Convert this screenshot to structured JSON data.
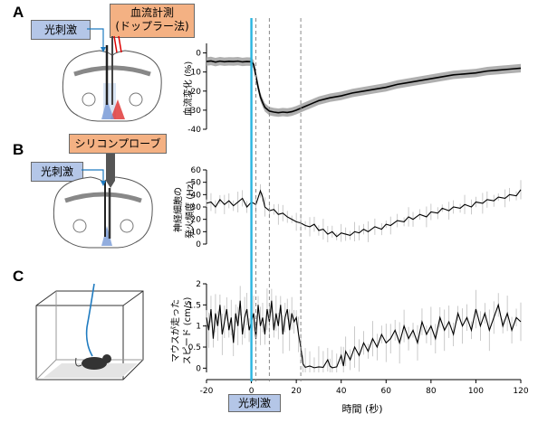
{
  "panels": {
    "A": {
      "letter": "A",
      "stim_label": "光刺激",
      "measure_label_1": "血流計測",
      "measure_label_2": "(ドップラー法)"
    },
    "B": {
      "letter": "B",
      "stim_label": "光刺激",
      "probe_label": "シリコンプローブ"
    },
    "C": {
      "letter": "C"
    }
  },
  "stim_bottom_label": "光刺激",
  "colors": {
    "stim_line": "#29b5e0",
    "stim_tag": "#b4c6e7",
    "measure_tag": "#f4b183",
    "band": "#a6a6a6",
    "trace": "#000000",
    "error": "#bdbdbd"
  },
  "chart_data": [
    {
      "type": "line",
      "panel": "A",
      "ylabel": "血流変化 (%)",
      "xlim": [
        -20,
        120
      ],
      "ylim": [
        -40,
        5
      ],
      "yticks": [
        0,
        -10,
        -20,
        -30,
        -40
      ],
      "series": [
        {
          "values": [
            [
              -20,
              -4.5
            ],
            [
              -18,
              -4.2
            ],
            [
              -16,
              -4.8
            ],
            [
              -14,
              -4.3
            ],
            [
              -12,
              -4.6
            ],
            [
              -10,
              -4.4
            ],
            [
              -8,
              -4.5
            ],
            [
              -6,
              -4.3
            ],
            [
              -4,
              -4.7
            ],
            [
              -2,
              -4.5
            ],
            [
              0,
              -4.6
            ],
            [
              1,
              -6
            ],
            [
              2,
              -12
            ],
            [
              3,
              -18
            ],
            [
              4,
              -23
            ],
            [
              5,
              -26
            ],
            [
              6,
              -28.5
            ],
            [
              7,
              -29.5
            ],
            [
              8,
              -30.5
            ],
            [
              10,
              -31
            ],
            [
              12,
              -31.3
            ],
            [
              14,
              -31
            ],
            [
              16,
              -31.2
            ],
            [
              18,
              -30.8
            ],
            [
              20,
              -30
            ],
            [
              22,
              -29
            ],
            [
              24,
              -28
            ],
            [
              26,
              -27
            ],
            [
              28,
              -26
            ],
            [
              30,
              -25
            ],
            [
              35,
              -23.5
            ],
            [
              40,
              -22.5
            ],
            [
              45,
              -21
            ],
            [
              50,
              -20
            ],
            [
              55,
              -19
            ],
            [
              60,
              -18
            ],
            [
              65,
              -16.5
            ],
            [
              70,
              -15.5
            ],
            [
              75,
              -14.5
            ],
            [
              80,
              -13.5
            ],
            [
              85,
              -12.5
            ],
            [
              90,
              -11.5
            ],
            [
              95,
              -11
            ],
            [
              100,
              -10.5
            ],
            [
              105,
              -9.5
            ],
            [
              110,
              -9
            ],
            [
              115,
              -8.5
            ],
            [
              120,
              -8
            ]
          ]
        }
      ]
    },
    {
      "type": "line",
      "panel": "B",
      "ylabel_1": "神経細胞の",
      "ylabel_2": "発火頻度 (Hz)",
      "xlim": [
        -20,
        120
      ],
      "ylim": [
        0,
        60
      ],
      "yticks": [
        60,
        50,
        40,
        30,
        20,
        10,
        0
      ],
      "series": [
        {
          "values": [
            [
              -20,
              33
            ],
            [
              -18,
              34
            ],
            [
              -16,
              30
            ],
            [
              -14,
              36
            ],
            [
              -12,
              32
            ],
            [
              -10,
              35
            ],
            [
              -8,
              31
            ],
            [
              -6,
              34
            ],
            [
              -4,
              37
            ],
            [
              -2,
              30
            ],
            [
              0,
              34
            ],
            [
              2,
              32
            ],
            [
              4,
              43
            ],
            [
              5,
              38
            ],
            [
              6,
              30
            ],
            [
              8,
              27
            ],
            [
              10,
              28
            ],
            [
              12,
              24
            ],
            [
              14,
              25
            ],
            [
              16,
              22
            ],
            [
              18,
              20
            ],
            [
              20,
              18
            ],
            [
              22,
              17
            ],
            [
              24,
              15
            ],
            [
              26,
              14
            ],
            [
              28,
              16
            ],
            [
              30,
              11
            ],
            [
              32,
              12
            ],
            [
              34,
              8
            ],
            [
              36,
              10
            ],
            [
              38,
              6
            ],
            [
              40,
              9
            ],
            [
              42,
              8
            ],
            [
              44,
              7
            ],
            [
              46,
              10
            ],
            [
              48,
              9
            ],
            [
              50,
              12
            ],
            [
              52,
              10
            ],
            [
              55,
              14
            ],
            [
              58,
              12
            ],
            [
              60,
              16
            ],
            [
              62,
              15
            ],
            [
              65,
              19
            ],
            [
              68,
              18
            ],
            [
              70,
              22
            ],
            [
              72,
              20
            ],
            [
              75,
              24
            ],
            [
              78,
              22
            ],
            [
              80,
              26
            ],
            [
              83,
              25
            ],
            [
              85,
              29
            ],
            [
              88,
              27
            ],
            [
              90,
              30
            ],
            [
              93,
              29
            ],
            [
              95,
              32
            ],
            [
              98,
              30
            ],
            [
              100,
              34
            ],
            [
              103,
              33
            ],
            [
              105,
              36
            ],
            [
              108,
              35
            ],
            [
              110,
              38
            ],
            [
              113,
              37
            ],
            [
              115,
              40
            ],
            [
              118,
              39
            ],
            [
              120,
              44
            ]
          ]
        }
      ]
    },
    {
      "type": "line",
      "panel": "C",
      "ylabel_1": "マウスが走った",
      "ylabel_2": "スピード (cm/s)",
      "xlabel": "時間 (秒)",
      "xlim": [
        -20,
        120
      ],
      "ylim": [
        -0.1,
        2
      ],
      "xticks": [
        -20,
        0,
        20,
        40,
        60,
        80,
        100,
        120
      ],
      "yticks": [
        2,
        1.5,
        1,
        0.5,
        0
      ],
      "series": [
        {
          "values": [
            [
              -20,
              1.2
            ],
            [
              -19,
              0.9
            ],
            [
              -18,
              1.4
            ],
            [
              -17,
              0.7
            ],
            [
              -16,
              1.3
            ],
            [
              -15,
              1.0
            ],
            [
              -14,
              1.5
            ],
            [
              -13,
              0.8
            ],
            [
              -12,
              1.1
            ],
            [
              -11,
              1.4
            ],
            [
              -10,
              0.9
            ],
            [
              -9,
              1.2
            ],
            [
              -8,
              0.6
            ],
            [
              -7,
              1.3
            ],
            [
              -6,
              1.0
            ],
            [
              -5,
              1.6
            ],
            [
              -4,
              0.8
            ],
            [
              -3,
              1.2
            ],
            [
              -2,
              1.4
            ],
            [
              -1,
              0.9
            ],
            [
              0,
              1.1
            ],
            [
              1,
              1.3
            ],
            [
              2,
              0.7
            ],
            [
              3,
              1.5
            ],
            [
              4,
              1.0
            ],
            [
              5,
              1.2
            ],
            [
              6,
              0.8
            ],
            [
              7,
              1.4
            ],
            [
              8,
              1.1
            ],
            [
              9,
              1.6
            ],
            [
              10,
              0.9
            ],
            [
              11,
              1.3
            ],
            [
              12,
              1.0
            ],
            [
              13,
              1.5
            ],
            [
              14,
              0.8
            ],
            [
              15,
              1.2
            ],
            [
              16,
              1.4
            ],
            [
              17,
              0.9
            ],
            [
              18,
              1.3
            ],
            [
              19,
              1.1
            ],
            [
              20,
              1.2
            ],
            [
              21,
              0.8
            ],
            [
              22,
              0.5
            ],
            [
              23,
              0.1
            ],
            [
              24,
              0.02
            ],
            [
              26,
              0.05
            ],
            [
              28,
              0.01
            ],
            [
              30,
              0.03
            ],
            [
              32,
              0.02
            ],
            [
              34,
              0.2
            ],
            [
              35,
              0.05
            ],
            [
              36,
              0.01
            ],
            [
              38,
              0.03
            ],
            [
              40,
              0.3
            ],
            [
              41,
              0.05
            ],
            [
              42,
              0.4
            ],
            [
              44,
              0.2
            ],
            [
              46,
              0.5
            ],
            [
              48,
              0.3
            ],
            [
              50,
              0.6
            ],
            [
              52,
              0.4
            ],
            [
              54,
              0.7
            ],
            [
              56,
              0.5
            ],
            [
              58,
              0.8
            ],
            [
              60,
              0.6
            ],
            [
              62,
              0.7
            ],
            [
              64,
              0.9
            ],
            [
              66,
              0.6
            ],
            [
              68,
              1.0
            ],
            [
              70,
              0.7
            ],
            [
              72,
              0.9
            ],
            [
              74,
              0.6
            ],
            [
              76,
              1.1
            ],
            [
              78,
              0.8
            ],
            [
              80,
              1.0
            ],
            [
              82,
              0.7
            ],
            [
              84,
              1.2
            ],
            [
              86,
              0.9
            ],
            [
              88,
              1.1
            ],
            [
              90,
              0.8
            ],
            [
              92,
              1.3
            ],
            [
              94,
              1.0
            ],
            [
              96,
              1.2
            ],
            [
              98,
              0.9
            ],
            [
              100,
              1.4
            ],
            [
              102,
              1.0
            ],
            [
              104,
              1.3
            ],
            [
              106,
              0.9
            ],
            [
              108,
              1.2
            ],
            [
              110,
              1.5
            ],
            [
              112,
              1.0
            ],
            [
              114,
              1.3
            ],
            [
              116,
              0.9
            ],
            [
              118,
              1.2
            ],
            [
              120,
              1.1
            ]
          ]
        }
      ]
    }
  ],
  "stim_times": [
    0
  ],
  "dashed_times": [
    2,
    8,
    22
  ]
}
